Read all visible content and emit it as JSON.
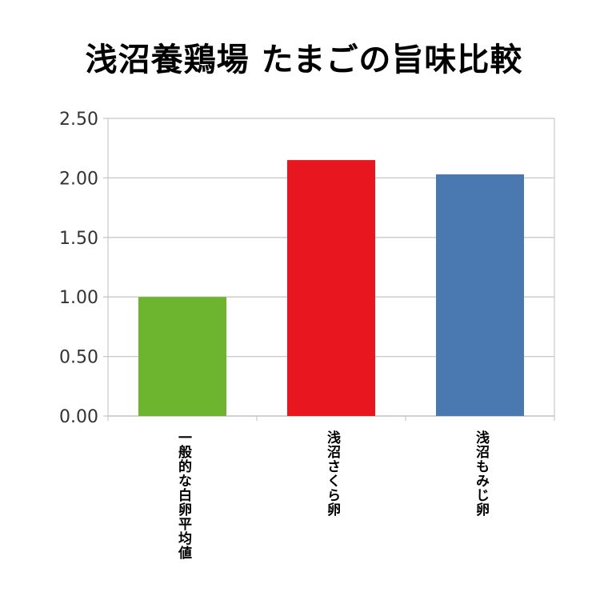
{
  "chart_data": {
    "type": "bar",
    "title": "浅沼養鶏場 たまごの旨味比較",
    "categories": [
      "一般的な白卵平均値",
      "浅沼さくら卵",
      "浅沼もみじ卵"
    ],
    "values": [
      1.0,
      2.15,
      2.03
    ],
    "colors": [
      "#6db52f",
      "#e8161e",
      "#4a78b0"
    ],
    "ylim": [
      0,
      2.5
    ],
    "yticks": [
      "0.00",
      "0.50",
      "1.00",
      "1.50",
      "2.00",
      "2.50"
    ],
    "grid": true,
    "xlabel": "",
    "ylabel": ""
  }
}
